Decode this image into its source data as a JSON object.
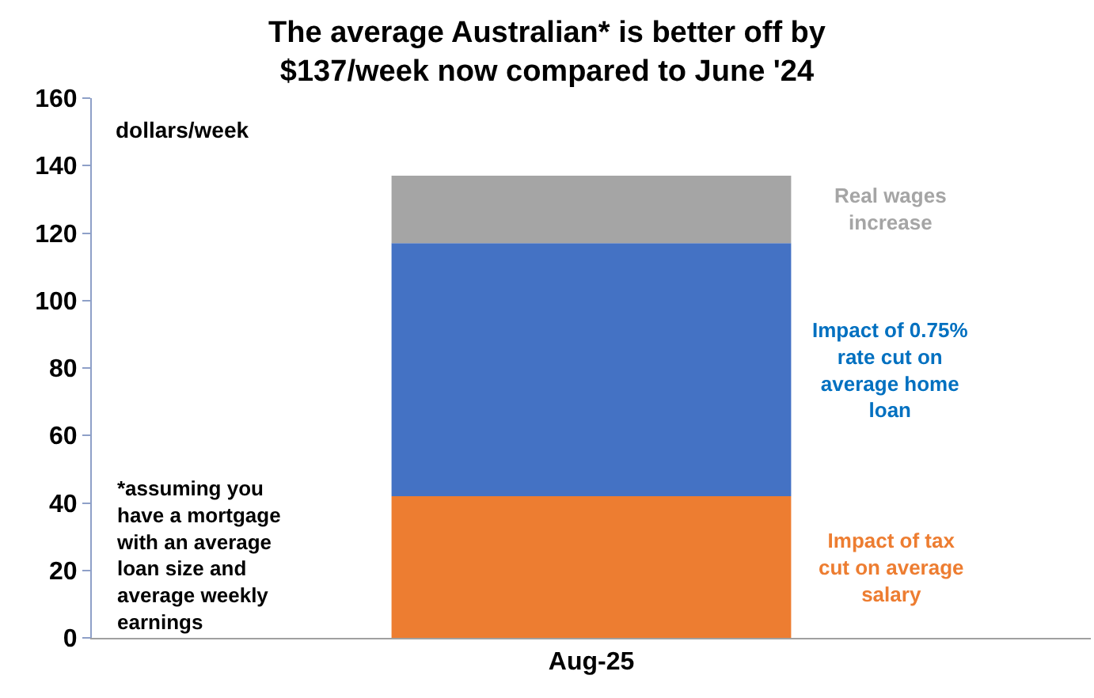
{
  "chart_data": {
    "type": "bar",
    "title": "The average Australian* is better off by $137/week now compared to June '24",
    "ylabel": "dollars/week",
    "categories": [
      "Aug-25"
    ],
    "stacked": true,
    "series": [
      {
        "name": "Impact of tax cut on average salary",
        "color": "#ed7d31",
        "values": [
          42
        ]
      },
      {
        "name": "Impact of 0.75% rate cut on average home loan",
        "color": "#4472c4",
        "values": [
          75
        ]
      },
      {
        "name": "Real wages increase",
        "color": "#a5a5a5",
        "values": [
          20
        ]
      }
    ],
    "annotations": [
      "*assuming you have a mortgage with an average loan size and average weekly earnings"
    ],
    "ylim": [
      0,
      160
    ],
    "yticks": [
      0,
      20,
      40,
      60,
      80,
      100,
      120,
      140,
      160
    ],
    "legend": false
  }
}
